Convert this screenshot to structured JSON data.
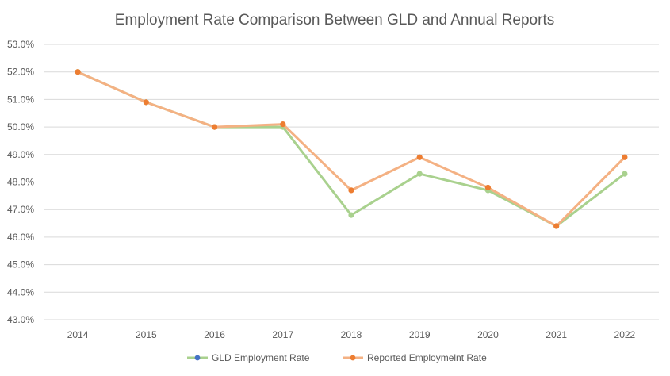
{
  "chart_data": {
    "type": "line",
    "title": "Employment Rate Comparison Between GLD and Annual Reports",
    "xlabel": "",
    "ylabel": "",
    "categories": [
      "2014",
      "2015",
      "2016",
      "2017",
      "2018",
      "2019",
      "2020",
      "2021",
      "2022"
    ],
    "ylim": [
      43.0,
      53.0
    ],
    "yticks": [
      43.0,
      44.0,
      45.0,
      46.0,
      47.0,
      48.0,
      49.0,
      50.0,
      51.0,
      52.0,
      53.0
    ],
    "yticks_format": "percent-1dp",
    "grid": true,
    "legend_position": "bottom",
    "series": [
      {
        "name": "GLD Employment Rate",
        "values": [
          52.0,
          50.9,
          50.0,
          50.0,
          46.8,
          48.3,
          47.7,
          46.4,
          48.3
        ],
        "line_color": "#a9d18e",
        "marker_color": "#a9d18e",
        "legend_marker_color": "#4472c4"
      },
      {
        "name": "Reported Employmelnt Rate",
        "values": [
          52.0,
          50.9,
          50.0,
          50.1,
          47.7,
          48.9,
          47.8,
          46.4,
          48.9
        ],
        "line_color": "#f4b183",
        "marker_color": "#ed7d31",
        "legend_marker_color": "#ed7d31"
      }
    ]
  }
}
